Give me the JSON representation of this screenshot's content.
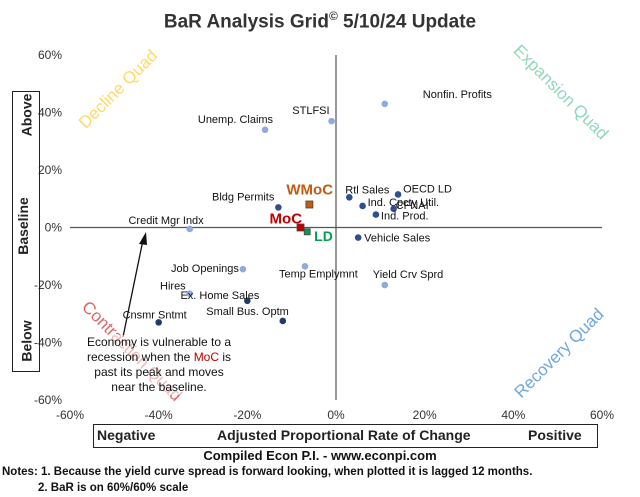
{
  "title": "BaR Analysis Grid",
  "title_symbol": "©",
  "title_suffix": " 5/10/24 Update",
  "y_axis_words": {
    "top": "Above",
    "middle": "Baseline",
    "bottom": "Below"
  },
  "x_axis_words": {
    "left": "Negative",
    "middle": "Adjusted Proportional Rate of Change",
    "right": "Positive"
  },
  "compiled": "Compiled Econ P.I. - www.econpi.com",
  "notes": [
    "Notes: 1. Because the yield curve spread is forward looking, when plotted it is lagged 12 months.",
    "2. BaR is on 60%/60% scale"
  ],
  "annotation": {
    "before": "Economy is vulnerable to a recession when the ",
    "highlight": "MoC",
    "after": " is past its peak and moves near the baseline."
  },
  "colors": {
    "light_point": "#8faadc",
    "dark_point": "#2f4f8f",
    "darker_point": "#1f3a6b",
    "moc": "#c00000",
    "wmoc": "#c55a11",
    "ld": "#00a050",
    "decline": "#ffd966",
    "expansion": "#8fd9b8",
    "contraction": "#e06666",
    "recovery": "#6fa8dc"
  },
  "chart_data": {
    "type": "scatter",
    "xlim": [
      -60,
      60
    ],
    "ylim": [
      -60,
      60
    ],
    "x_ticks": [
      "-60%",
      "-40%",
      "-20%",
      "0%",
      "20%",
      "40%",
      "60%"
    ],
    "y_ticks": [
      "60%",
      "40%",
      "20%",
      "0%",
      "-20%",
      "-40%",
      "-60%"
    ],
    "grid": false,
    "quadrants": [
      {
        "label": "Decline Quad",
        "position": "top-left"
      },
      {
        "label": "Expansion Quad",
        "position": "top-right"
      },
      {
        "label": "Contraction Quad",
        "position": "bottom-left"
      },
      {
        "label": "Recovery Quad",
        "position": "bottom-right"
      }
    ],
    "points": [
      {
        "label": "Nonfin. Profits",
        "x": 11,
        "y": 43,
        "shade": "light"
      },
      {
        "label": "STLFSI",
        "x": -1,
        "y": 37,
        "shade": "light"
      },
      {
        "label": "Unemp. Claims",
        "x": -16,
        "y": 34,
        "shade": "light"
      },
      {
        "label": "OECD LD",
        "x": 14,
        "y": 11.5,
        "shade": "dark"
      },
      {
        "label": "Rtl Sales",
        "x": 3,
        "y": 10.5,
        "shade": "dark"
      },
      {
        "label": "Ind. Cpcty Util.",
        "x": 6,
        "y": 7.5,
        "shade": "dark"
      },
      {
        "label": "CFNAI",
        "x": 13,
        "y": 6.5,
        "shade": "dark"
      },
      {
        "label": "Ind. Prod.",
        "x": 9,
        "y": 4.5,
        "shade": "dark"
      },
      {
        "label": "Bldg Permits",
        "x": -13,
        "y": 7,
        "shade": "dark"
      },
      {
        "label": "Credit Mgr Indx",
        "x": -33,
        "y": -0.5,
        "shade": "light"
      },
      {
        "label": "Vehicle Sales",
        "x": 5,
        "y": -3.5,
        "shade": "dark"
      },
      {
        "label": "Job Openings",
        "x": -21,
        "y": -14.5,
        "shade": "light"
      },
      {
        "label": "Temp Emplymnt",
        "x": -7,
        "y": -13.5,
        "shade": "light"
      },
      {
        "label": "Yield Crv Sprd",
        "x": 11,
        "y": -20,
        "shade": "light"
      },
      {
        "label": "Hires",
        "x": -33,
        "y": -23,
        "shade": "light"
      },
      {
        "label": "Ex. Home Sales",
        "x": -20,
        "y": -25.5,
        "shade": "darker"
      },
      {
        "label": "Cnsmr Sntmt",
        "x": -40,
        "y": -33,
        "shade": "darker"
      },
      {
        "label": "Small Bus. Optm",
        "x": -12,
        "y": -32.5,
        "shade": "darker"
      }
    ],
    "highlights": [
      {
        "label": "WMoC",
        "x": -6,
        "y": 8,
        "kind": "wmoc"
      },
      {
        "label": "MoC",
        "x": -8,
        "y": 0,
        "kind": "moc"
      },
      {
        "label": "LD",
        "x": -6.5,
        "y": -1.5,
        "kind": "ld"
      }
    ]
  }
}
